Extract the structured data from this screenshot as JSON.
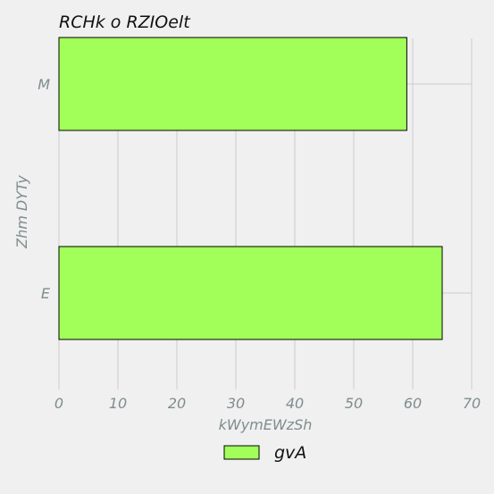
{
  "chart_data": {
    "type": "bar",
    "orientation": "horizontal",
    "title": "RCHk o RZIOelt",
    "xlabel": "kWymEWzSh",
    "ylabel": "Zhm DYTy",
    "categories": [
      "M",
      "E"
    ],
    "series": [
      {
        "name": "gvA",
        "values": [
          59,
          65
        ]
      }
    ],
    "xlim": [
      0,
      70
    ],
    "xticks": [
      "0",
      "10",
      "20",
      "30",
      "40",
      "50",
      "60",
      "70"
    ],
    "grid": true,
    "legend": "bottom-center",
    "colors": {
      "bar_fill": "#a2ff5a",
      "bar_edge": "#000000",
      "grid": "#cccccc",
      "tick_text": "#7f8c8d",
      "background": "#f0f0f0"
    }
  }
}
